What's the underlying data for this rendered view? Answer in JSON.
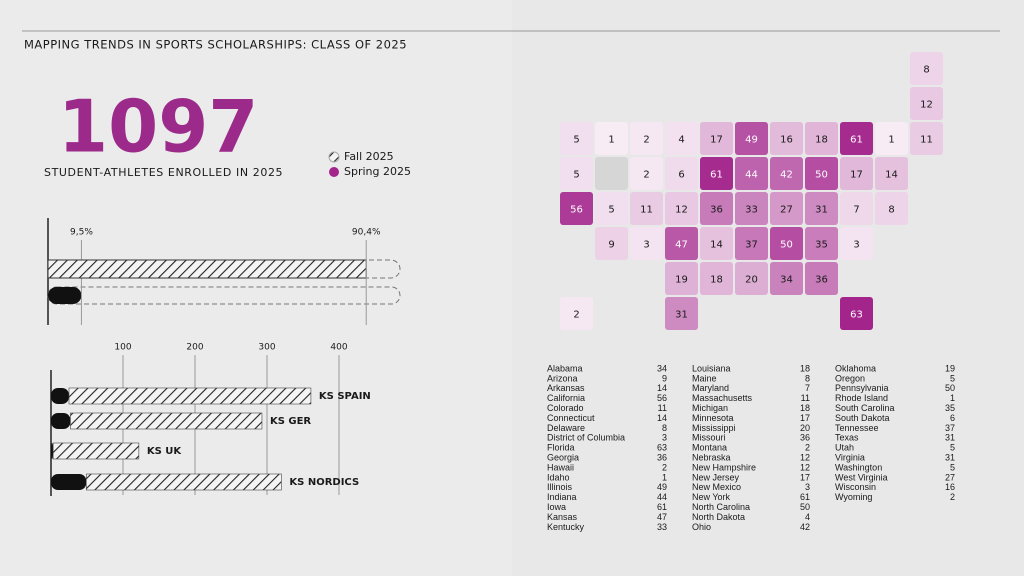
{
  "title": "MAPPING TRENDS IN SPORTS SCHOLARSHIPS: CLASS OF 2025",
  "stat": {
    "value": 1097,
    "label": "STUDENT-ATHLETES ENROLLED IN 2025"
  },
  "chart_data": [
    {
      "type": "stackbar",
      "categories": [
        null
      ],
      "xlim": [
        0,
        100
      ],
      "series": [
        {
          "name": "Spring 2025",
          "color": "#111111",
          "values": [
            9.5
          ],
          "value_labels": [
            "9,5%"
          ]
        },
        {
          "name": "Fall 2025",
          "color": "hatch",
          "values": [
            90.4
          ],
          "value_labels": [
            "90,4%"
          ]
        }
      ]
    },
    {
      "type": "stackbar",
      "categories": [
        "KS SPAIN",
        "KS GER",
        "KS UK",
        "KS NORDICS"
      ],
      "xlim": [
        0,
        400
      ],
      "xticks": [
        100,
        200,
        300,
        400
      ],
      "series": [
        {
          "color": "#111111",
          "values": [
            25,
            27,
            3,
            49
          ]
        },
        {
          "color": "hatch",
          "values": [
            336,
            266,
            119,
            271
          ]
        }
      ]
    },
    {
      "type": "choropleth",
      "color_range": [
        "#f8eef6",
        "#a3258c"
      ],
      "categories": [
        "Alabama",
        "Arizona",
        "Arkansas",
        "California",
        "Colorado",
        "Connecticut",
        "Delaware",
        "District of Columbia",
        "Florida",
        "Georgia",
        "Hawaii",
        "Idaho",
        "Illinois",
        "Indiana",
        "Iowa",
        "Kansas",
        "Kentucky",
        "Louisiana",
        "Maine",
        "Maryland",
        "Massachusetts",
        "Michigan",
        "Minnesota",
        "Mississippi",
        "Missouri",
        "Montana",
        "Nebraska",
        "New Hampshire",
        "New Jersey",
        "New Mexico",
        "New York",
        "North Carolina",
        "North Dakota",
        "Ohio",
        "Oklahoma",
        "Oregon",
        "Pennsylvania",
        "Rhode Island",
        "South Carolina",
        "South Dakota",
        "Tennessee",
        "Texas",
        "Utah",
        "Virginia",
        "Washington",
        "West Virginia",
        "Wisconsin",
        "Wyoming"
      ],
      "values": [
        34,
        9,
        14,
        56,
        11,
        14,
        8,
        3,
        63,
        36,
        2,
        1,
        49,
        44,
        61,
        47,
        33,
        18,
        8,
        7,
        11,
        18,
        17,
        20,
        36,
        2,
        12,
        12,
        17,
        3,
        61,
        50,
        4,
        42,
        19,
        5,
        50,
        1,
        35,
        6,
        37,
        31,
        5,
        31,
        5,
        27,
        16,
        2
      ]
    }
  ]
}
